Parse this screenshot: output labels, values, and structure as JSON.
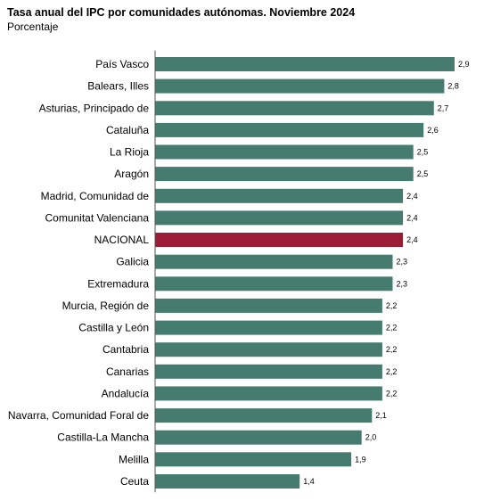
{
  "header": {
    "title": "Tasa anual del IPC por comunidades autónomas. Noviembre 2024",
    "subtitle": "Porcentaje"
  },
  "colors": {
    "bar": "#467b6f",
    "highlight": "#9c1b35",
    "axis": "#555555"
  },
  "chart_data": {
    "type": "bar",
    "orientation": "horizontal",
    "title": "Tasa anual del IPC por comunidades autónomas. Noviembre 2024",
    "subtitle": "Porcentaje",
    "highlight_category": "NACIONAL",
    "categories": [
      "País Vasco",
      "Balears, Illes",
      "Asturias, Principado de",
      "Cataluña",
      "La Rioja",
      "Aragón",
      "Madrid, Comunidad de",
      "Comunitat Valenciana",
      "NACIONAL",
      "Galicia",
      "Extremadura",
      "Murcia, Región de",
      "Castilla y León",
      "Cantabria",
      "Canarias",
      "Andalucía",
      "Navarra, Comunidad Foral de",
      "Castilla-La Mancha",
      "Melilla",
      "Ceuta"
    ],
    "values": [
      2.9,
      2.8,
      2.7,
      2.6,
      2.5,
      2.5,
      2.4,
      2.4,
      2.4,
      2.3,
      2.3,
      2.2,
      2.2,
      2.2,
      2.2,
      2.2,
      2.1,
      2.0,
      1.9,
      1.4
    ],
    "value_labels": [
      "2,9",
      "2,8",
      "2,7",
      "2,6",
      "2,5",
      "2,5",
      "2,4",
      "2,4",
      "2,4",
      "2,3",
      "2,3",
      "2,2",
      "2,2",
      "2,2",
      "2,2",
      "2,2",
      "2,1",
      "2,0",
      "1,9",
      "1,4"
    ],
    "xlim": [
      0,
      2.9
    ],
    "grid": false,
    "legend": "none"
  }
}
